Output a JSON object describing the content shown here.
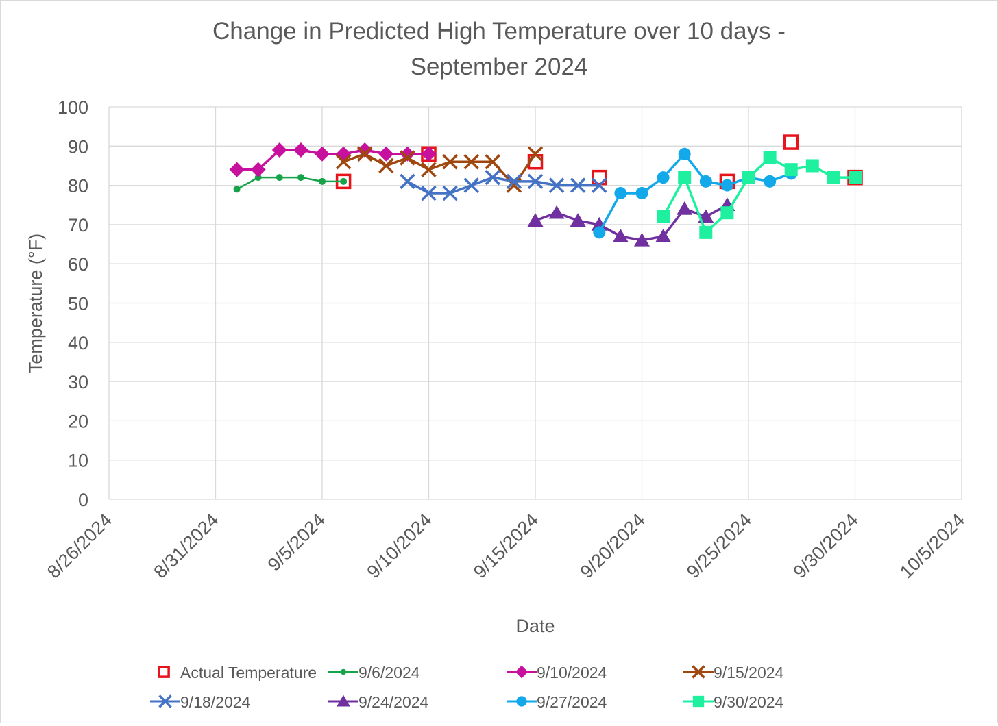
{
  "chart_data": {
    "type": "line",
    "title_lines": [
      "Change in Predicted High Temperature over 10 days -",
      "September 2024"
    ],
    "xlabel": "Date",
    "ylabel": "Temperature (°F)",
    "xlim": [
      "2024-08-26",
      "2024-10-05"
    ],
    "ylim": [
      0,
      100
    ],
    "x_ticks": [
      "8/26/2024",
      "8/31/2024",
      "9/5/2024",
      "9/10/2024",
      "9/15/2024",
      "9/20/2024",
      "9/25/2024",
      "9/30/2024",
      "10/5/2024"
    ],
    "y_ticks": [
      "0",
      "10",
      "20",
      "30",
      "40",
      "50",
      "60",
      "70",
      "80",
      "90",
      "100"
    ],
    "grid": true,
    "legend_position": "bottom",
    "series": [
      {
        "name": "Actual Temperature",
        "color": "#e8141b",
        "marker": "hollow-square",
        "line": false,
        "points": [
          [
            "2024-09-06",
            81
          ],
          [
            "2024-09-10",
            88
          ],
          [
            "2024-09-15",
            86
          ],
          [
            "2024-09-18",
            82
          ],
          [
            "2024-09-24",
            81
          ],
          [
            "2024-09-27",
            91
          ],
          [
            "2024-09-30",
            82
          ]
        ]
      },
      {
        "name": "9/6/2024",
        "color": "#16a34a",
        "marker": "dot",
        "line": true,
        "points": [
          [
            "2024-09-01",
            79
          ],
          [
            "2024-09-02",
            82
          ],
          [
            "2024-09-03",
            82
          ],
          [
            "2024-09-04",
            82
          ],
          [
            "2024-09-05",
            81
          ],
          [
            "2024-09-06",
            81
          ]
        ]
      },
      {
        "name": "9/10/2024",
        "color": "#c8109e",
        "marker": "diamond",
        "line": true,
        "points": [
          [
            "2024-09-01",
            84
          ],
          [
            "2024-09-02",
            84
          ],
          [
            "2024-09-03",
            89
          ],
          [
            "2024-09-04",
            89
          ],
          [
            "2024-09-05",
            88
          ],
          [
            "2024-09-06",
            88
          ],
          [
            "2024-09-07",
            89
          ],
          [
            "2024-09-08",
            88
          ],
          [
            "2024-09-09",
            88
          ],
          [
            "2024-09-10",
            88
          ]
        ]
      },
      {
        "name": "9/15/2024",
        "color": "#a0470f",
        "marker": "x",
        "line": true,
        "points": [
          [
            "2024-09-06",
            86
          ],
          [
            "2024-09-07",
            88
          ],
          [
            "2024-09-08",
            85
          ],
          [
            "2024-09-09",
            87
          ],
          [
            "2024-09-10",
            84
          ],
          [
            "2024-09-11",
            86
          ],
          [
            "2024-09-12",
            86
          ],
          [
            "2024-09-13",
            86
          ],
          [
            "2024-09-14",
            80
          ],
          [
            "2024-09-15",
            88
          ]
        ]
      },
      {
        "name": "9/18/2024",
        "color": "#4472c4",
        "marker": "x",
        "line": true,
        "points": [
          [
            "2024-09-09",
            81
          ],
          [
            "2024-09-10",
            78
          ],
          [
            "2024-09-11",
            78
          ],
          [
            "2024-09-12",
            80
          ],
          [
            "2024-09-13",
            82
          ],
          [
            "2024-09-14",
            81
          ],
          [
            "2024-09-15",
            81
          ],
          [
            "2024-09-16",
            80
          ],
          [
            "2024-09-17",
            80
          ],
          [
            "2024-09-18",
            80
          ]
        ]
      },
      {
        "name": "9/24/2024",
        "color": "#7030a0",
        "marker": "triangle",
        "line": true,
        "points": [
          [
            "2024-09-15",
            71
          ],
          [
            "2024-09-16",
            73
          ],
          [
            "2024-09-17",
            71
          ],
          [
            "2024-09-18",
            70
          ],
          [
            "2024-09-19",
            67
          ],
          [
            "2024-09-20",
            66
          ],
          [
            "2024-09-21",
            67
          ],
          [
            "2024-09-22",
            74
          ],
          [
            "2024-09-23",
            72
          ],
          [
            "2024-09-24",
            75
          ]
        ]
      },
      {
        "name": "9/27/2024",
        "color": "#12a8ea",
        "marker": "circle",
        "line": true,
        "points": [
          [
            "2024-09-18",
            68
          ],
          [
            "2024-09-19",
            78
          ],
          [
            "2024-09-20",
            78
          ],
          [
            "2024-09-21",
            82
          ],
          [
            "2024-09-22",
            88
          ],
          [
            "2024-09-23",
            81
          ],
          [
            "2024-09-24",
            80
          ],
          [
            "2024-09-25",
            82
          ],
          [
            "2024-09-26",
            81
          ],
          [
            "2024-09-27",
            83
          ]
        ]
      },
      {
        "name": "9/30/2024",
        "color": "#1ef0a0",
        "marker": "square",
        "line": true,
        "points": [
          [
            "2024-09-21",
            72
          ],
          [
            "2024-09-22",
            82
          ],
          [
            "2024-09-23",
            68
          ],
          [
            "2024-09-24",
            73
          ],
          [
            "2024-09-25",
            82
          ],
          [
            "2024-09-26",
            87
          ],
          [
            "2024-09-27",
            84
          ],
          [
            "2024-09-28",
            85
          ],
          [
            "2024-09-29",
            82
          ],
          [
            "2024-09-30",
            82
          ]
        ]
      }
    ]
  }
}
